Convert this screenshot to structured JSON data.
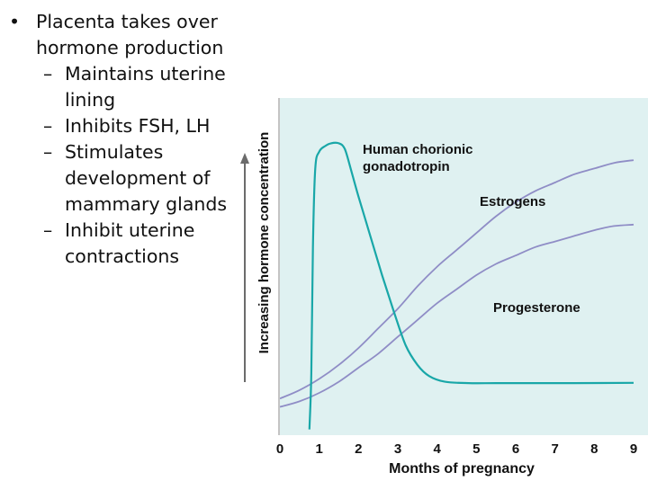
{
  "slide": {
    "main_bullet": "Placenta takes over hormone production",
    "sub_bullets": [
      "Maintains uterine lining",
      "Inhibits FSH, LH",
      "Stimulates development of mammary glands",
      "Inhibit uterine contractions"
    ]
  },
  "chart_data": {
    "type": "line",
    "title": "",
    "xlabel": "Months of pregnancy",
    "ylabel": "Increasing hormone concentration",
    "xlim": [
      0,
      9
    ],
    "ylim": [
      0,
      100
    ],
    "x_ticks": [
      "0",
      "1",
      "2",
      "3",
      "4",
      "5",
      "6",
      "7",
      "8",
      "9"
    ],
    "grid": false,
    "series": [
      {
        "name": "Human chorionic gonadotropin",
        "label_lines": [
          "Human chorionic",
          "gonadotropin"
        ],
        "color": "#19a7a8",
        "points": [
          [
            0.75,
            -5
          ],
          [
            0.8,
            15
          ],
          [
            0.84,
            60
          ],
          [
            0.9,
            88
          ],
          [
            1.0,
            94
          ],
          [
            1.15,
            96
          ],
          [
            1.3,
            97
          ],
          [
            1.5,
            97
          ],
          [
            1.65,
            95
          ],
          [
            1.8,
            88
          ],
          [
            2.0,
            78
          ],
          [
            2.3,
            64
          ],
          [
            2.6,
            50
          ],
          [
            2.9,
            37
          ],
          [
            3.2,
            25
          ],
          [
            3.5,
            18
          ],
          [
            3.8,
            14
          ],
          [
            4.2,
            12
          ],
          [
            4.8,
            11.5
          ],
          [
            5.5,
            11.5
          ],
          [
            6.5,
            11.5
          ],
          [
            7.5,
            11.5
          ],
          [
            9.0,
            11.6
          ]
        ]
      },
      {
        "name": "Estrogens",
        "label_lines": [
          "Estrogens"
        ],
        "color": "#8f8dc6",
        "points": [
          [
            0,
            6
          ],
          [
            0.5,
            9
          ],
          [
            1,
            13
          ],
          [
            1.5,
            18
          ],
          [
            2,
            24
          ],
          [
            2.5,
            31
          ],
          [
            3,
            38
          ],
          [
            3.5,
            46
          ],
          [
            4,
            53
          ],
          [
            4.5,
            59
          ],
          [
            5,
            65
          ],
          [
            5.5,
            71
          ],
          [
            6,
            76
          ],
          [
            6.5,
            80
          ],
          [
            7,
            83
          ],
          [
            7.5,
            86
          ],
          [
            8,
            88
          ],
          [
            8.5,
            90
          ],
          [
            9,
            91
          ]
        ]
      },
      {
        "name": "Progesterone",
        "label_lines": [
          "Progesterone"
        ],
        "color": "#8f8dc6",
        "points": [
          [
            0,
            3
          ],
          [
            0.5,
            5
          ],
          [
            1,
            8
          ],
          [
            1.5,
            12
          ],
          [
            2,
            17
          ],
          [
            2.5,
            22
          ],
          [
            3,
            28
          ],
          [
            3.5,
            34
          ],
          [
            4,
            40
          ],
          [
            4.5,
            45
          ],
          [
            5,
            50
          ],
          [
            5.5,
            54
          ],
          [
            6,
            57
          ],
          [
            6.5,
            60
          ],
          [
            7,
            62
          ],
          [
            7.5,
            64
          ],
          [
            8,
            66
          ],
          [
            8.5,
            67.5
          ],
          [
            9,
            68
          ]
        ]
      }
    ]
  }
}
